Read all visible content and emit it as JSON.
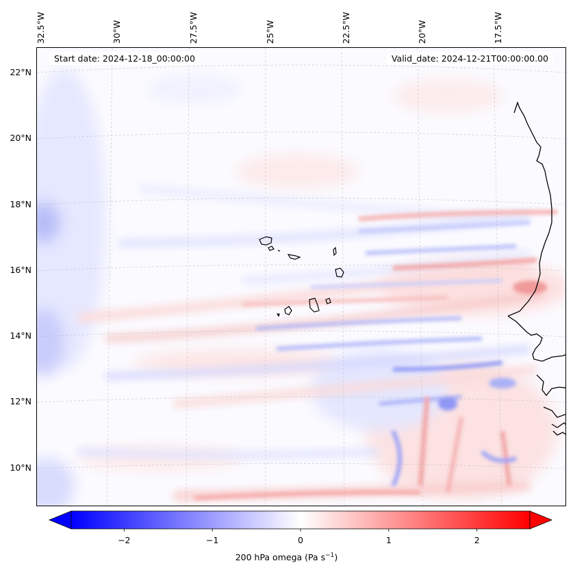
{
  "map": {
    "title_left": "Start date: 2024-12-18_00:00:00",
    "title_right": "Valid_date: 2024-12-21T00:00:00.00",
    "lon_labels": [
      "32.5°W",
      "30°W",
      "27.5°W",
      "25°W",
      "22.5°W",
      "20°W",
      "17.5°W"
    ],
    "lat_labels": [
      "22°N",
      "20°N",
      "18°N",
      "16°N",
      "14°N",
      "12°N",
      "10°N"
    ],
    "field": "200 hPa omega",
    "region": "Cape Verde Islands and West African coast"
  },
  "colorbar": {
    "label": "200 hPa omega (Pa s",
    "label_sup": "−1",
    "label_end": ")",
    "ticks": [
      "−2",
      "−1",
      "0",
      "1",
      "2"
    ],
    "min": -2.6,
    "max": 2.6,
    "tick_values": [
      -2,
      -1,
      0,
      1,
      2
    ],
    "neg_color": "#0000ff",
    "mid_color": "#ffffff",
    "pos_color": "#ff0000"
  }
}
